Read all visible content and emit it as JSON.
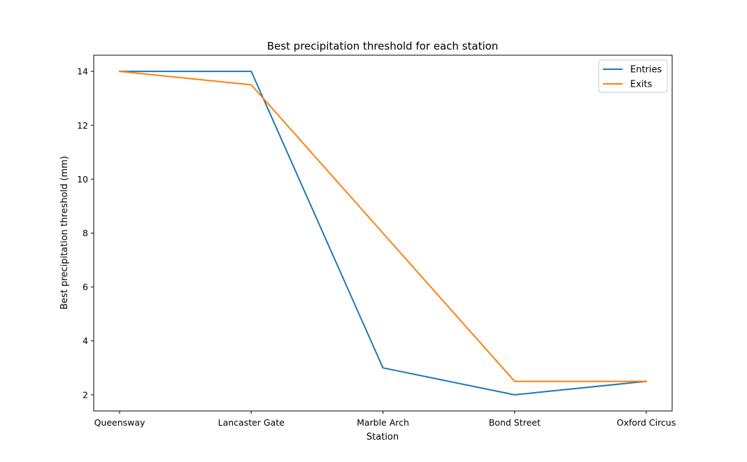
{
  "chart_data": {
    "type": "line",
    "title": "Best precipitation threshold for each station",
    "xlabel": "Station",
    "ylabel": "Best precipitation threshold (mm)",
    "categories": [
      "Queensway",
      "Lancaster Gate",
      "Marble Arch",
      "Bond Street",
      "Oxford Circus"
    ],
    "yticks": [
      2,
      4,
      6,
      8,
      10,
      12,
      14
    ],
    "ylim": [
      1.4,
      14.6
    ],
    "series": [
      {
        "name": "Entries",
        "color": "#1f77b4",
        "values": [
          14,
          14,
          3,
          2,
          2.5
        ]
      },
      {
        "name": "Exits",
        "color": "#ff7f0e",
        "values": [
          14,
          13.5,
          8,
          2.5,
          2.5
        ]
      }
    ],
    "grid": false,
    "legend_position": "top-right"
  }
}
